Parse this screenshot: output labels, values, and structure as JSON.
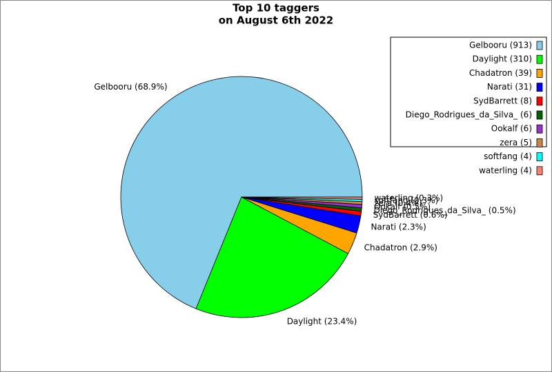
{
  "chart_data": {
    "type": "pie",
    "title": [
      "Top 10 taggers",
      "on August 6th 2022"
    ],
    "categories": [
      "Gelbooru",
      "Daylight",
      "Chadatron",
      "Narati",
      "SydBarrett",
      "Diego_Rodrigues_da_Silva_",
      "Ookalf",
      "zera",
      "softfang",
      "waterling"
    ],
    "values": [
      913,
      310,
      39,
      31,
      8,
      6,
      6,
      5,
      4,
      4
    ],
    "value_labels": [
      "Gelbooru (913)",
      "Daylight (310)",
      "Chadatron (39)",
      "Narati (31)",
      "SydBarrett (8)",
      "Diego_Rodrigues_da_Silva_ (6)",
      "Ookalf (6)",
      "zera (5)",
      "softfang (4)",
      "waterling (4)"
    ],
    "percent_labels": [
      "Gelbooru (68.9%)",
      "Daylight (23.4%)",
      "Chadatron (2.9%)",
      "Narati (2.3%)",
      "SydBarrett (0.6%)",
      "Diego_Rodrigues_da_Silva_ (0.5%)",
      "Ookalf (0.5%)",
      "zera (0.4%)",
      "softfang (0.3%)",
      "waterling (0.3%)"
    ],
    "colors": [
      "#87ceeb",
      "#00ff00",
      "#ffa500",
      "#0000ff",
      "#ff0000",
      "#006400",
      "#9932cc",
      "#cd853f",
      "#00ffff",
      "#fa8072"
    ],
    "legend": "upper right"
  }
}
